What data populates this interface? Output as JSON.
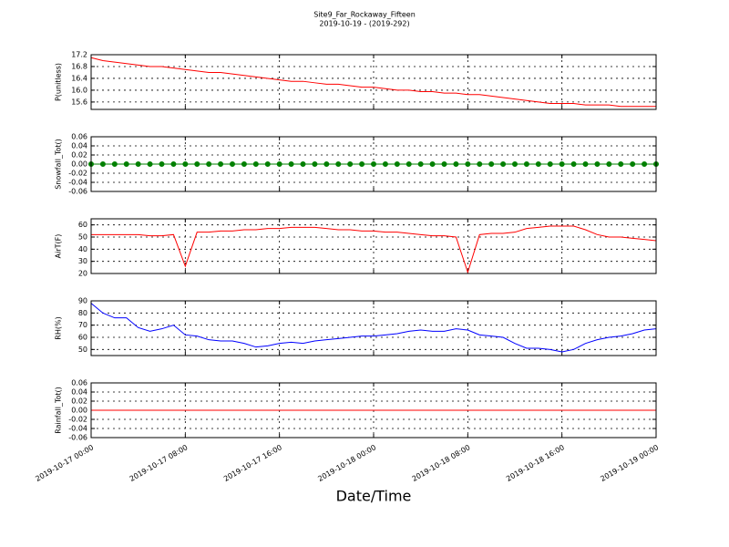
{
  "chart_data": [
    {
      "type": "line",
      "title": "Site9_Far_Rockaway_Fifteen",
      "subtitle": "2019-10-19 - (2019-292)",
      "ylabel": "P(unitless)",
      "color": "#ff0000",
      "ylim": [
        15.35,
        17.2
      ],
      "yticks": [
        15.6,
        {
          "value": 16,
          "label": "16.0"
        },
        16.4,
        16.8,
        17.2
      ],
      "grid": true,
      "x": [
        "2019-10-17 00:00",
        "2019-10-17 01:00",
        "2019-10-17 02:00",
        "2019-10-17 03:00",
        "2019-10-17 04:00",
        "2019-10-17 05:00",
        "2019-10-17 06:00",
        "2019-10-17 07:00",
        "2019-10-17 08:00",
        "2019-10-17 09:00",
        "2019-10-17 10:00",
        "2019-10-17 11:00",
        "2019-10-17 12:00",
        "2019-10-17 13:00",
        "2019-10-17 14:00",
        "2019-10-17 15:00",
        "2019-10-17 16:00",
        "2019-10-17 17:00",
        "2019-10-17 18:00",
        "2019-10-17 19:00",
        "2019-10-17 20:00",
        "2019-10-17 21:00",
        "2019-10-17 22:00",
        "2019-10-17 23:00",
        "2019-10-18 00:00",
        "2019-10-18 01:00",
        "2019-10-18 02:00",
        "2019-10-18 03:00",
        "2019-10-18 04:00",
        "2019-10-18 05:00",
        "2019-10-18 06:00",
        "2019-10-18 07:00",
        "2019-10-18 08:00",
        "2019-10-18 09:00",
        "2019-10-18 10:00",
        "2019-10-18 11:00",
        "2019-10-18 12:00",
        "2019-10-18 13:00",
        "2019-10-18 14:00",
        "2019-10-18 15:00",
        "2019-10-18 16:00",
        "2019-10-18 17:00",
        "2019-10-18 18:00",
        "2019-10-18 19:00",
        "2019-10-18 20:00",
        "2019-10-18 21:00",
        "2019-10-18 22:00",
        "2019-10-18 23:00",
        "2019-10-19 00:00"
      ],
      "values": [
        17.1,
        17.0,
        16.95,
        16.9,
        16.85,
        16.8,
        16.8,
        16.75,
        16.7,
        16.65,
        16.6,
        16.6,
        16.55,
        16.5,
        16.45,
        16.4,
        16.35,
        16.3,
        16.3,
        16.25,
        16.2,
        16.2,
        16.15,
        16.1,
        16.1,
        16.05,
        16.0,
        16.0,
        15.95,
        15.95,
        15.9,
        15.9,
        15.85,
        15.85,
        15.8,
        15.75,
        15.7,
        15.65,
        15.6,
        15.55,
        15.55,
        15.55,
        15.5,
        15.5,
        15.5,
        15.45,
        15.45,
        15.45,
        15.45
      ]
    },
    {
      "type": "line",
      "ylabel": "Snowfall_Tot()",
      "color": "#008000",
      "marker": true,
      "ylim": [
        -0.06,
        0.06
      ],
      "yticks": [
        -0.06,
        -0.04,
        -0.02,
        {
          "value": 0,
          "label": "0.00"
        },
        0.02,
        0.04,
        0.06
      ],
      "grid": true,
      "x": [
        "2019-10-17 00:00",
        "2019-10-17 01:00",
        "2019-10-17 02:00",
        "2019-10-17 03:00",
        "2019-10-17 04:00",
        "2019-10-17 05:00",
        "2019-10-17 06:00",
        "2019-10-17 07:00",
        "2019-10-17 08:00",
        "2019-10-17 09:00",
        "2019-10-17 10:00",
        "2019-10-17 11:00",
        "2019-10-17 12:00",
        "2019-10-17 13:00",
        "2019-10-17 14:00",
        "2019-10-17 15:00",
        "2019-10-17 16:00",
        "2019-10-17 17:00",
        "2019-10-17 18:00",
        "2019-10-17 19:00",
        "2019-10-17 20:00",
        "2019-10-17 21:00",
        "2019-10-17 22:00",
        "2019-10-17 23:00",
        "2019-10-18 00:00",
        "2019-10-18 01:00",
        "2019-10-18 02:00",
        "2019-10-18 03:00",
        "2019-10-18 04:00",
        "2019-10-18 05:00",
        "2019-10-18 06:00",
        "2019-10-18 07:00",
        "2019-10-18 08:00",
        "2019-10-18 09:00",
        "2019-10-18 10:00",
        "2019-10-18 11:00",
        "2019-10-18 12:00",
        "2019-10-18 13:00",
        "2019-10-18 14:00",
        "2019-10-18 15:00",
        "2019-10-18 16:00",
        "2019-10-18 17:00",
        "2019-10-18 18:00",
        "2019-10-18 19:00",
        "2019-10-18 20:00",
        "2019-10-18 21:00",
        "2019-10-18 22:00",
        "2019-10-18 23:00",
        "2019-10-19 00:00"
      ],
      "values": [
        0,
        0,
        0,
        0,
        0,
        0,
        0,
        0,
        0,
        0,
        0,
        0,
        0,
        0,
        0,
        0,
        0,
        0,
        0,
        0,
        0,
        0,
        0,
        0,
        0,
        0,
        0,
        0,
        0,
        0,
        0,
        0,
        0,
        0,
        0,
        0,
        0,
        0,
        0,
        0,
        0,
        0,
        0,
        0,
        0,
        0,
        0,
        0,
        0
      ]
    },
    {
      "type": "line",
      "ylabel": "AirT(F)",
      "color": "#ff0000",
      "ylim": [
        20,
        65
      ],
      "yticks": [
        20,
        30,
        40,
        50,
        60
      ],
      "grid": true,
      "x": [
        "2019-10-17 00:00",
        "2019-10-17 01:00",
        "2019-10-17 02:00",
        "2019-10-17 03:00",
        "2019-10-17 04:00",
        "2019-10-17 05:00",
        "2019-10-17 06:00",
        "2019-10-17 07:00",
        "2019-10-17 08:00",
        "2019-10-17 09:00",
        "2019-10-17 10:00",
        "2019-10-17 11:00",
        "2019-10-17 12:00",
        "2019-10-17 13:00",
        "2019-10-17 14:00",
        "2019-10-17 15:00",
        "2019-10-17 16:00",
        "2019-10-17 17:00",
        "2019-10-17 18:00",
        "2019-10-17 19:00",
        "2019-10-17 20:00",
        "2019-10-17 21:00",
        "2019-10-17 22:00",
        "2019-10-17 23:00",
        "2019-10-18 00:00",
        "2019-10-18 01:00",
        "2019-10-18 02:00",
        "2019-10-18 03:00",
        "2019-10-18 04:00",
        "2019-10-18 05:00",
        "2019-10-18 06:00",
        "2019-10-18 07:00",
        "2019-10-18 08:00",
        "2019-10-18 09:00",
        "2019-10-18 10:00",
        "2019-10-18 11:00",
        "2019-10-18 12:00",
        "2019-10-18 13:00",
        "2019-10-18 14:00",
        "2019-10-18 15:00",
        "2019-10-18 16:00",
        "2019-10-18 17:00",
        "2019-10-18 18:00",
        "2019-10-18 19:00",
        "2019-10-18 20:00",
        "2019-10-18 21:00",
        "2019-10-18 22:00",
        "2019-10-18 23:00",
        "2019-10-19 00:00"
      ],
      "values": [
        52,
        52,
        52,
        52,
        52,
        51,
        51,
        52,
        26,
        54,
        54,
        55,
        55,
        56,
        56,
        57,
        57,
        58,
        58,
        58,
        57,
        56,
        56,
        55,
        55,
        54,
        54,
        53,
        52,
        51,
        51,
        50,
        21,
        52,
        53,
        53,
        54,
        57,
        58,
        59,
        59,
        59,
        56,
        52,
        50,
        50,
        49,
        48,
        47
      ]
    },
    {
      "type": "line",
      "ylabel": "RH(%)",
      "color": "#0000ff",
      "ylim": [
        45,
        90
      ],
      "yticks": [
        50,
        60,
        70,
        80,
        90
      ],
      "grid": true,
      "x": [
        "2019-10-17 00:00",
        "2019-10-17 01:00",
        "2019-10-17 02:00",
        "2019-10-17 03:00",
        "2019-10-17 04:00",
        "2019-10-17 05:00",
        "2019-10-17 06:00",
        "2019-10-17 07:00",
        "2019-10-17 08:00",
        "2019-10-17 09:00",
        "2019-10-17 10:00",
        "2019-10-17 11:00",
        "2019-10-17 12:00",
        "2019-10-17 13:00",
        "2019-10-17 14:00",
        "2019-10-17 15:00",
        "2019-10-17 16:00",
        "2019-10-17 17:00",
        "2019-10-17 18:00",
        "2019-10-17 19:00",
        "2019-10-17 20:00",
        "2019-10-17 21:00",
        "2019-10-17 22:00",
        "2019-10-17 23:00",
        "2019-10-18 00:00",
        "2019-10-18 01:00",
        "2019-10-18 02:00",
        "2019-10-18 03:00",
        "2019-10-18 04:00",
        "2019-10-18 05:00",
        "2019-10-18 06:00",
        "2019-10-18 07:00",
        "2019-10-18 08:00",
        "2019-10-18 09:00",
        "2019-10-18 10:00",
        "2019-10-18 11:00",
        "2019-10-18 12:00",
        "2019-10-18 13:00",
        "2019-10-18 14:00",
        "2019-10-18 15:00",
        "2019-10-18 16:00",
        "2019-10-18 17:00",
        "2019-10-18 18:00",
        "2019-10-18 19:00",
        "2019-10-18 20:00",
        "2019-10-18 21:00",
        "2019-10-18 22:00",
        "2019-10-18 23:00",
        "2019-10-19 00:00"
      ],
      "values": [
        88,
        80,
        76,
        76,
        68,
        65,
        67,
        70,
        62,
        61,
        58,
        57,
        57,
        55,
        52,
        53,
        55,
        56,
        55,
        57,
        58,
        59,
        60,
        61,
        61,
        62,
        63,
        65,
        66,
        65,
        65,
        67,
        66,
        62,
        61,
        60,
        55,
        51,
        51,
        50,
        48,
        50,
        55,
        58,
        60,
        61,
        63,
        66,
        67
      ]
    },
    {
      "type": "line",
      "ylabel": "Rainfall_Tot()",
      "color": "#ff0000",
      "xlabel": "Date/Time",
      "ylim": [
        -0.06,
        0.06
      ],
      "yticks": [
        -0.06,
        -0.04,
        -0.02,
        {
          "value": 0,
          "label": "0.00"
        },
        0.02,
        0.04,
        0.06
      ],
      "grid": true,
      "xlim": [
        "2019-10-17 00:00",
        "2019-10-19 00:00"
      ],
      "xticks": [
        "2019-10-17 00:00",
        "2019-10-17 08:00",
        "2019-10-17 16:00",
        "2019-10-18 00:00",
        "2019-10-18 08:00",
        "2019-10-18 16:00",
        "2019-10-19 00:00"
      ],
      "x": [
        "2019-10-17 00:00",
        "2019-10-17 01:00",
        "2019-10-17 02:00",
        "2019-10-17 03:00",
        "2019-10-17 04:00",
        "2019-10-17 05:00",
        "2019-10-17 06:00",
        "2019-10-17 07:00",
        "2019-10-17 08:00",
        "2019-10-17 09:00",
        "2019-10-17 10:00",
        "2019-10-17 11:00",
        "2019-10-17 12:00",
        "2019-10-17 13:00",
        "2019-10-17 14:00",
        "2019-10-17 15:00",
        "2019-10-17 16:00",
        "2019-10-17 17:00",
        "2019-10-17 18:00",
        "2019-10-17 19:00",
        "2019-10-17 20:00",
        "2019-10-17 21:00",
        "2019-10-17 22:00",
        "2019-10-17 23:00",
        "2019-10-18 00:00",
        "2019-10-18 01:00",
        "2019-10-18 02:00",
        "2019-10-18 03:00",
        "2019-10-18 04:00",
        "2019-10-18 05:00",
        "2019-10-18 06:00",
        "2019-10-18 07:00",
        "2019-10-18 08:00",
        "2019-10-18 09:00",
        "2019-10-18 10:00",
        "2019-10-18 11:00",
        "2019-10-18 12:00",
        "2019-10-18 13:00",
        "2019-10-18 14:00",
        "2019-10-18 15:00",
        "2019-10-18 16:00",
        "2019-10-18 17:00",
        "2019-10-18 18:00",
        "2019-10-18 19:00",
        "2019-10-18 20:00",
        "2019-10-18 21:00",
        "2019-10-18 22:00",
        "2019-10-18 23:00",
        "2019-10-19 00:00"
      ],
      "values": [
        0,
        0,
        0,
        0,
        0,
        0,
        0,
        0,
        0,
        0,
        0,
        0,
        0,
        0,
        0,
        0,
        0,
        0,
        0,
        0,
        0,
        0,
        0,
        0,
        0,
        0,
        0,
        0,
        0,
        0,
        0,
        0,
        0,
        0,
        0,
        0,
        0,
        0,
        0,
        0,
        0,
        0,
        0,
        0,
        0,
        0,
        0,
        0,
        0
      ]
    }
  ]
}
